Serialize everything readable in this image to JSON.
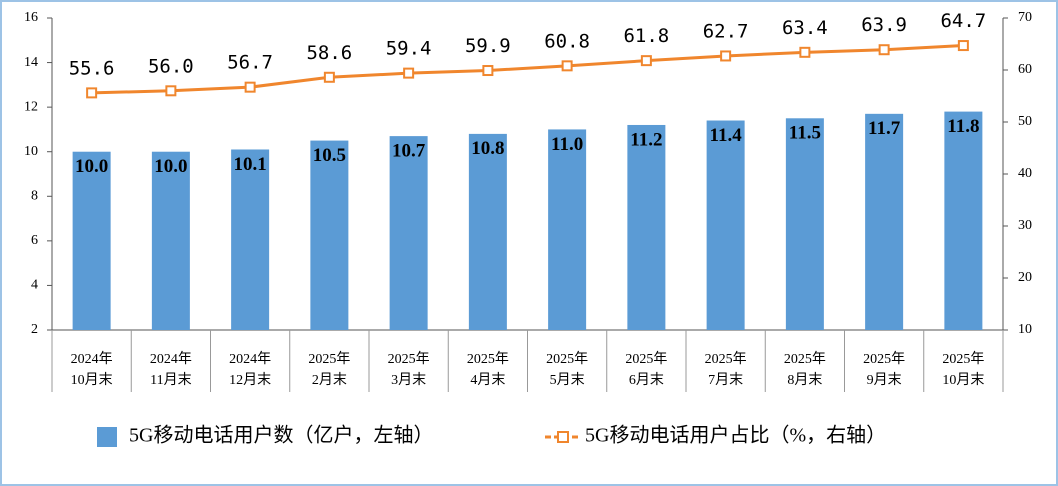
{
  "chart_data": {
    "type": "bar-line",
    "categories": [
      [
        "2024年",
        "10月末"
      ],
      [
        "2024年",
        "11月末"
      ],
      [
        "2024年",
        "12月末"
      ],
      [
        "2025年",
        "2月末"
      ],
      [
        "2025年",
        "3月末"
      ],
      [
        "2025年",
        "4月末"
      ],
      [
        "2025年",
        "5月末"
      ],
      [
        "2025年",
        "6月末"
      ],
      [
        "2025年",
        "7月末"
      ],
      [
        "2025年",
        "8月末"
      ],
      [
        "2025年",
        "9月末"
      ],
      [
        "2025年",
        "10月末"
      ]
    ],
    "series": [
      {
        "name": "5G移动电话用户数（亿户，左轴）",
        "type": "bar",
        "color": "#5b9bd5",
        "values": [
          10.0,
          10.0,
          10.1,
          10.5,
          10.7,
          10.8,
          11.0,
          11.2,
          11.4,
          11.5,
          11.7,
          11.8
        ],
        "value_labels": [
          "10.0",
          "10.0",
          "10.1",
          "10.5",
          "10.7",
          "10.8",
          "11.0",
          "11.2",
          "11.4",
          "11.5",
          "11.7",
          "11.8"
        ]
      },
      {
        "name": "5G移动电话用户占比（%，右轴）",
        "type": "line",
        "axis": "y2",
        "color": "#f0862d",
        "values": [
          55.6,
          56.0,
          56.7,
          58.6,
          59.4,
          59.9,
          60.8,
          61.8,
          62.7,
          63.4,
          63.9,
          64.7
        ],
        "value_labels": [
          "55.6",
          "56.0",
          "56.7",
          "58.6",
          "59.4",
          "59.9",
          "60.8",
          "61.8",
          "62.7",
          "63.4",
          "63.9",
          "64.7"
        ]
      }
    ],
    "ylim": [
      2,
      16
    ],
    "yticks": [
      2,
      4,
      6,
      8,
      10,
      12,
      14,
      16
    ],
    "y2lim": [
      10,
      70
    ],
    "y2ticks": [
      10,
      20,
      30,
      40,
      50,
      60,
      70
    ]
  }
}
